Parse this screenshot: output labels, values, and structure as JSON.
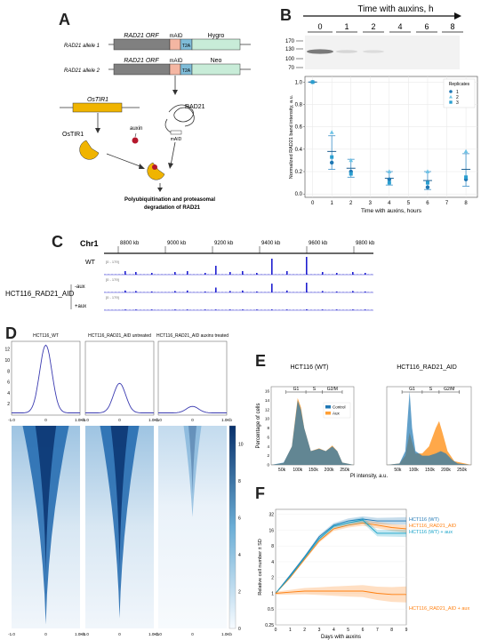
{
  "panel_letters": {
    "a": "A",
    "b": "B",
    "c": "C",
    "d": "D",
    "e": "E",
    "f": "F"
  },
  "panelA": {
    "allele1": "RAD21 allele 1",
    "allele2": "RAD21 allele 2",
    "orf": "RAD21 ORF",
    "maid": "mAID",
    "t2a": "T2A",
    "hygro": "Hygro",
    "neo": "Neo",
    "ostir1_gene": "OsTIR1",
    "ostir1_protein": "OsTIR1",
    "auxin": "auxin",
    "rad21": "RAD21",
    "maid_small": "mAID",
    "degradation_line1": "Polyubiquitination and proteasomal",
    "degradation_line2": "degradation of RAD21"
  },
  "panelB": {
    "gel_title": "Time with auxins, h",
    "lanes": [
      "0",
      "1",
      "2",
      "4",
      "6",
      "8"
    ],
    "markers": [
      "170",
      "130",
      "100",
      "70"
    ],
    "chart_data": {
      "type": "scatter",
      "xlabel": "Time with auxins, hours",
      "ylabel": "Normalized RAD21 band intensity, a.u.",
      "xticks": [
        "0",
        "1",
        "2",
        "3",
        "4",
        "5",
        "6",
        "7",
        "8"
      ],
      "yticks": [
        "0.0",
        "0.2",
        "0.4",
        "0.6",
        "0.8",
        "1.0"
      ],
      "xlim": [
        -0.4,
        8.6
      ],
      "ylim": [
        -0.03,
        1.05
      ],
      "legend_title": "Replicates",
      "legend_position": "top-right",
      "series": [
        {
          "name": "1",
          "marker": "circle",
          "x": [
            0,
            1,
            2,
            4,
            6,
            8
          ],
          "y": [
            1.0,
            0.28,
            0.2,
            0.13,
            0.06,
            0.13
          ]
        },
        {
          "name": "2",
          "marker": "triangle",
          "x": [
            0,
            1,
            2,
            4,
            6,
            8
          ],
          "y": [
            1.0,
            0.55,
            0.3,
            0.2,
            0.2,
            0.38
          ]
        },
        {
          "name": "3",
          "marker": "square",
          "x": [
            0,
            1,
            2,
            4,
            6,
            8
          ],
          "y": [
            1.0,
            0.33,
            0.18,
            0.1,
            0.1,
            0.15
          ]
        }
      ],
      "mean": [
        1.0,
        0.38,
        0.23,
        0.14,
        0.12,
        0.22
      ],
      "sd_low": [
        1.0,
        0.22,
        0.15,
        0.08,
        0.04,
        0.07
      ],
      "sd_high": [
        1.0,
        0.52,
        0.31,
        0.2,
        0.2,
        0.36
      ]
    }
  },
  "panelC": {
    "chrom": "Chr1",
    "ticks": [
      "8800 kb",
      "9000 kb",
      "9200 kb",
      "9400 kb",
      "9600 kb",
      "9800 kb"
    ],
    "range": "[0 - 179]",
    "wt": "WT",
    "cell_line": "HCT116_RAD21_AID",
    "minus_aux": "-aux",
    "plus_aux": "+aux"
  },
  "panelD": {
    "titles": [
      "HCT116_WT",
      "HCT116_RAD21_AID untreated",
      "HCT116_RAD21_AID auxins treated"
    ],
    "profile_yticks": [
      "2",
      "4",
      "6",
      "8",
      "10",
      "12"
    ],
    "xticks": [
      "-1.0",
      "0",
      "1.0Kb"
    ],
    "colorbar_ticks": [
      "0",
      "2",
      "4",
      "6",
      "8",
      "10"
    ],
    "profile_peaks": [
      12.8,
      5.8,
      1.6
    ]
  },
  "panelE": {
    "titles": [
      "HCT116 (WT)",
      "HCT116_RAD21_AID"
    ],
    "ylabel": "Percentage of cells",
    "xlabel": "PI intensity, a.u.",
    "yticks": [
      "0",
      "2",
      "4",
      "6",
      "8",
      "10",
      "12",
      "14",
      "16"
    ],
    "xticks": [
      "50k",
      "100k",
      "150k",
      "200k",
      "250k"
    ],
    "phases": [
      "G1",
      "S",
      "G2/M"
    ],
    "legend": [
      "Control",
      "Aux"
    ]
  },
  "panelF": {
    "chart_data": {
      "type": "line",
      "xlabel": "Days with auxins",
      "ylabel": "Relative cell number ± SD",
      "x": [
        0,
        1,
        2,
        3,
        4,
        5,
        6,
        7,
        8,
        9
      ],
      "xticks": [
        "0",
        "1",
        "2",
        "3",
        "4",
        "5",
        "6",
        "7",
        "8",
        "9"
      ],
      "yticks": [
        "0.25",
        "0.5",
        "1",
        "2",
        "4",
        "8",
        "16",
        "32"
      ],
      "yscale": "log2",
      "ylim": [
        0.25,
        40
      ],
      "series": [
        {
          "name": "HCT116 (WT)",
          "color": "#1f77b4",
          "y": [
            1,
            2.2,
            5,
            12,
            20,
            24,
            26,
            24,
            24,
            24
          ]
        },
        {
          "name": "HCT116_RAD21_AID",
          "color": "#ff7f0e",
          "y": [
            1,
            2,
            4.5,
            10,
            17,
            20,
            22,
            20,
            18,
            17
          ]
        },
        {
          "name": "HCT116 (WT) + aux",
          "color": "#17a2c8",
          "y": [
            1,
            2.1,
            4.8,
            11,
            19,
            22,
            25,
            14,
            14,
            14
          ]
        },
        {
          "name": "HCT116_RAD21_AID + aux",
          "color": "#ff7f0e",
          "y": [
            1,
            1.05,
            1.1,
            1.1,
            1.1,
            1.1,
            1.1,
            1.0,
            0.95,
            0.95
          ]
        }
      ]
    }
  }
}
